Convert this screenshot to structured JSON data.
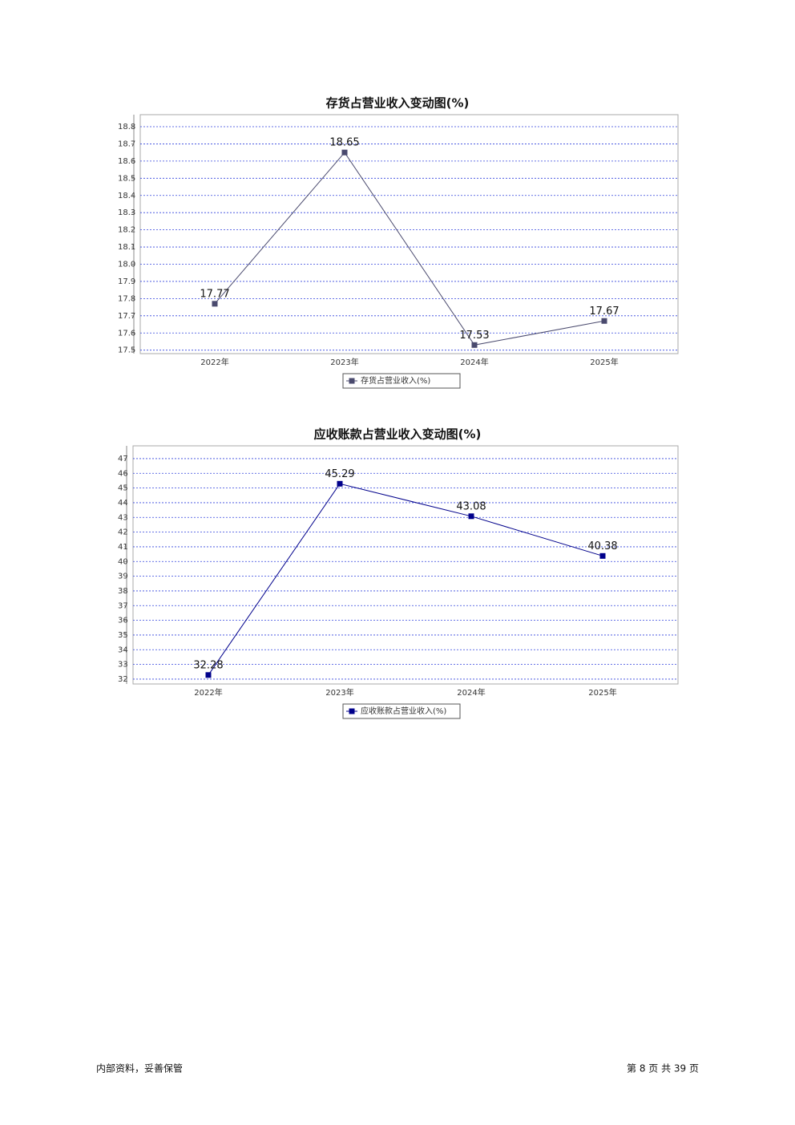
{
  "chart_data": [
    {
      "type": "line",
      "title": "存货占营业收入变动图(%)",
      "categories": [
        "2022年",
        "2023年",
        "2024年",
        "2025年"
      ],
      "series": [
        {
          "name": "存货占营业收入(%)",
          "color": "#4a4a6e",
          "values": [
            17.77,
            18.65,
            17.53,
            17.67
          ]
        }
      ],
      "ylim": [
        17.48,
        18.87
      ],
      "yticks": [
        17.5,
        17.6,
        17.7,
        17.8,
        17.9,
        {
          "value": 18,
          "label": "18.0"
        },
        18.1,
        18.2,
        18.3,
        18.4,
        18.5,
        18.6,
        18.7,
        18.8
      ],
      "grid": true
    },
    {
      "type": "line",
      "title": "应收账款占营业收入变动图(%)",
      "categories": [
        "2022年",
        "2023年",
        "2024年",
        "2025年"
      ],
      "series": [
        {
          "name": "应收账款占营业收入(%)",
          "color": "#00008b",
          "values": [
            32.28,
            45.29,
            43.08,
            40.38
          ]
        }
      ],
      "ylim": [
        31.67,
        47.87
      ],
      "yticks": [
        32,
        33,
        34,
        35,
        36,
        37,
        38,
        39,
        40,
        41,
        42,
        43,
        44,
        45,
        46,
        47
      ],
      "grid": true
    }
  ],
  "footer": {
    "left": "内部资料，妥善保管",
    "right": "第 8 页  共 39 页"
  }
}
